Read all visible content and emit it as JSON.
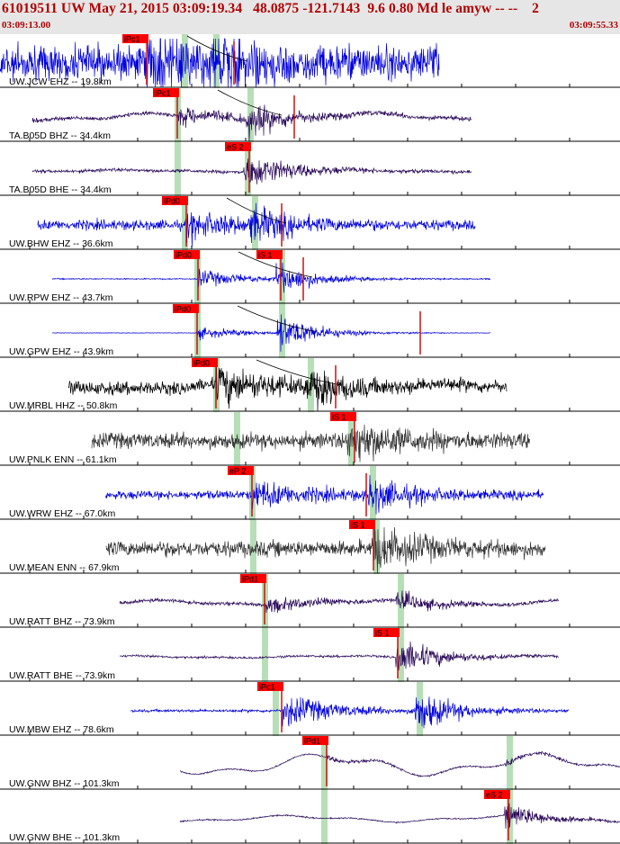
{
  "header": {
    "title": "61019511 UW May 21, 2015 03:09:19.34   48.0875 -121.7143  9.6 0.80 Md le amyw -- --    2",
    "start_time": "03:09:13.00",
    "end_time": "03:09:55.33"
  },
  "colors": {
    "header_text": "#b00000",
    "header_bg": "#e6e6e6",
    "pick_box": "#ff0000",
    "pick_line": "#cc0000",
    "theoretical_band": "#9fd49f",
    "trace_blue": "#0000dd",
    "trace_purple": "#2a0a5a",
    "trace_black": "#000000",
    "trace_gray": "#333333",
    "tick": "#000000"
  },
  "traces": [
    {
      "label": "UW.JCW EHZ -- 19.8km",
      "color": "blue",
      "start": 0,
      "end": 488,
      "noise": 1.2,
      "wave": 0,
      "amp_p": 1.4,
      "amp_s": 1.3,
      "picks": [
        {
          "text": "iPc1",
          "x": 163,
          "line": true
        },
        {
          "text": "",
          "x": 260,
          "line": true
        }
      ],
      "bands": [
        205,
        240
      ],
      "curve": true
    },
    {
      "label": "TA.B05D BHZ -- 34.4km",
      "color": "purple",
      "start": 36,
      "end": 524,
      "noise": 0.15,
      "wave": 0.35,
      "amp_p": 0.6,
      "amp_s": 1.0,
      "picks": [
        {
          "text": "iPc1",
          "x": 197,
          "line": true
        },
        {
          "text": "",
          "x": 327,
          "line": true
        }
      ],
      "bands": [
        197,
        278
      ],
      "curve": true
    },
    {
      "label": "TA.B05D BHE -- 34.4km",
      "color": "purple",
      "start": 36,
      "end": 524,
      "noise": 0.12,
      "wave": 0.1,
      "amp_p": 0.45,
      "amp_s": 0.8,
      "picks": [
        {
          "text": "eS 2",
          "x": 277,
          "line": true
        }
      ],
      "bands": [
        197,
        275
      ],
      "curve": false
    },
    {
      "label": "UW.BHW EHZ -- 36.6km",
      "color": "blue",
      "start": 42,
      "end": 528,
      "noise": 0.35,
      "wave": 0,
      "amp_p": 0.8,
      "amp_s": 0.9,
      "picks": [
        {
          "text": "iPd0",
          "x": 207,
          "line": true
        },
        {
          "text": "",
          "x": 313,
          "line": true
        }
      ],
      "bands": [
        205,
        283
      ],
      "curve": true
    },
    {
      "label": "UW.RPW EHZ -- 43.7km",
      "color": "blue",
      "start": 58,
      "end": 545,
      "noise": 0.04,
      "wave": 0,
      "amp_p": 0.6,
      "amp_s": 0.9,
      "picks": [
        {
          "text": "iPd0",
          "x": 220,
          "line": true
        },
        {
          "text": "iS 1",
          "x": 312,
          "line": true
        },
        {
          "text": "",
          "x": 337,
          "line": true
        }
      ],
      "bands": [
        219,
        313
      ],
      "curve": true
    },
    {
      "label": "UW.GPW EHZ -- 43.9km",
      "color": "blue",
      "start": 58,
      "end": 545,
      "noise": 0.02,
      "wave": 0,
      "amp_p": 0.4,
      "amp_s": 1.2,
      "picks": [
        {
          "text": "iPd0",
          "x": 219,
          "line": true
        },
        {
          "text": "",
          "x": 467,
          "line": true
        }
      ],
      "bands": [
        219,
        313
      ],
      "curve": true
    },
    {
      "label": "UW.MRBL HHZ -- 50.8km",
      "color": "black",
      "start": 76,
      "end": 563,
      "noise": 0.45,
      "wave": 0.25,
      "amp_p": 1.2,
      "amp_s": 0.9,
      "picks": [
        {
          "text": "iPd0",
          "x": 240,
          "line": true
        },
        {
          "text": "",
          "x": 373,
          "line": true
        }
      ],
      "bands": [
        240,
        345
      ],
      "curve": true
    },
    {
      "label": "UW.PNLK ENN -- 61.1km",
      "color": "gray",
      "start": 102,
      "end": 589,
      "noise": 0.55,
      "wave": 0,
      "amp_p": 0.55,
      "amp_s": 0.8,
      "picks": [
        {
          "text": "iS 1",
          "x": 394,
          "line": true
        }
      ],
      "bands": [
        263,
        390
      ],
      "curve": false
    },
    {
      "label": "UW.WRW EHZ -- 67.0km",
      "color": "blue",
      "start": 117,
      "end": 604,
      "noise": 0.3,
      "wave": 0,
      "amp_p": 0.9,
      "amp_s": 1.0,
      "picks": [
        {
          "text": "eP 2",
          "x": 280,
          "line": true
        },
        {
          "text": "",
          "x": 407,
          "line": true
        }
      ],
      "bands": [
        280,
        414
      ],
      "curve": false
    },
    {
      "label": "UW.MEAN ENN -- 67.9km",
      "color": "gray",
      "start": 118,
      "end": 606,
      "noise": 0.55,
      "wave": 0,
      "amp_p": 0.55,
      "amp_s": 0.8,
      "picks": [
        {
          "text": "iS 1",
          "x": 415,
          "line": true
        }
      ],
      "bands": [
        281,
        418
      ],
      "curve": false
    },
    {
      "label": "UW.RATT BHZ -- 73.9km",
      "color": "purple",
      "start": 133,
      "end": 621,
      "noise": 0.12,
      "wave": 0.25,
      "amp_p": 0.5,
      "amp_s": 0.55,
      "picks": [
        {
          "text": "iPd1",
          "x": 294,
          "line": true
        }
      ],
      "bands": [
        294,
        445
      ],
      "curve": false
    },
    {
      "label": "UW.RATT BHE -- 73.9km",
      "color": "purple",
      "start": 133,
      "end": 621,
      "noise": 0.08,
      "wave": 0.1,
      "amp_p": 0.2,
      "amp_s": 1.1,
      "picks": [
        {
          "text": "iS 1",
          "x": 442,
          "line": true
        }
      ],
      "bands": [
        294,
        445
      ],
      "curve": false
    },
    {
      "label": "UW.MBW EHZ -- 78.6km",
      "color": "blue",
      "start": 145,
      "end": 632,
      "noise": 0.1,
      "wave": 0,
      "amp_p": 1.2,
      "amp_s": 1.3,
      "picks": [
        {
          "text": "iPc1",
          "x": 313,
          "line": true
        }
      ],
      "bands": [
        306,
        466
      ],
      "curve": false
    },
    {
      "label": "UW.GNW BHZ -- 101.3km",
      "color": "purple",
      "start": 200,
      "end": 689,
      "noise": 0.05,
      "wave": 1.0,
      "amp_p": 0.15,
      "amp_s": 0.2,
      "picks": [
        {
          "text": "iPd1",
          "x": 363,
          "line": true
        }
      ],
      "bands": [
        360,
        566
      ],
      "curve": false
    },
    {
      "label": "UW.GNW BHE -- 101.3km",
      "color": "purple",
      "start": 200,
      "end": 689,
      "noise": 0.05,
      "wave": 0.3,
      "amp_p": 0.1,
      "amp_s": 0.8,
      "picks": [
        {
          "text": "eS 2",
          "x": 565,
          "line": true
        }
      ],
      "bands": [
        360,
        566
      ],
      "curve": false
    }
  ]
}
